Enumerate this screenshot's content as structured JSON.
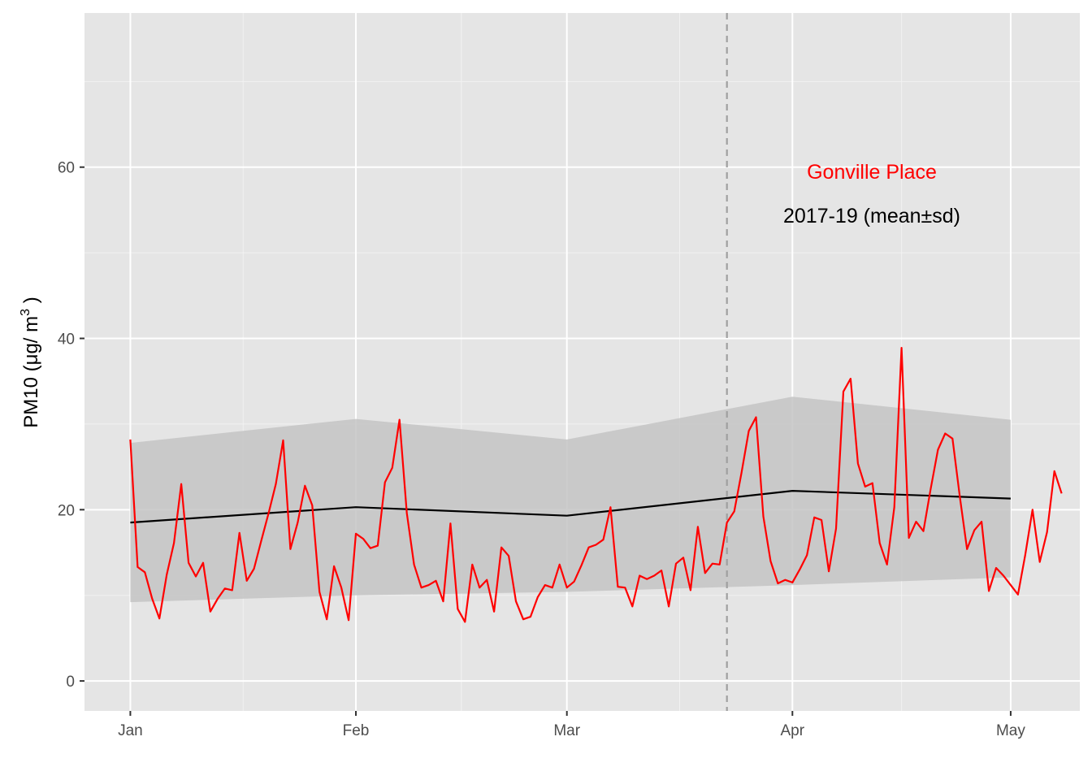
{
  "chart_data": {
    "type": "line",
    "ylabel_parts": [
      "PM10 (",
      "μ",
      "g/",
      "m",
      "3",
      ")"
    ],
    "yticks": [
      0,
      20,
      40,
      60
    ],
    "ylim": [
      -3.5,
      78
    ],
    "xticks": [
      {
        "label": "Jan",
        "day": 0
      },
      {
        "label": "Feb",
        "day": 31
      },
      {
        "label": "Mar",
        "day": 60
      },
      {
        "label": "Apr",
        "day": 91
      },
      {
        "label": "May",
        "day": 121
      }
    ],
    "x_range_days": [
      -6.3,
      130.5
    ],
    "annotations": {
      "site": "Gonville Place",
      "baseline": "2017-19 (mean±sd)"
    },
    "colors": {
      "site": "#ff0000",
      "baseline": "#000000",
      "band": "#c4c4c4",
      "panel": "#e5e5e5",
      "vline": "#a0a0a0"
    },
    "vline_day": 82,
    "baseline_monthly": {
      "days": [
        0,
        31,
        60,
        91,
        121
      ],
      "mean": [
        18.5,
        20.3,
        19.3,
        22.2,
        21.3
      ],
      "upper": [
        27.8,
        30.6,
        28.2,
        33.2,
        30.5
      ],
      "lower": [
        9.2,
        10.0,
        10.4,
        11.2,
        12.1
      ]
    },
    "series": [
      {
        "name": "Gonville Place",
        "x": [
          0,
          1,
          2,
          3,
          4,
          5,
          6,
          7,
          8,
          9,
          10,
          11,
          12,
          13,
          14,
          15,
          16,
          17,
          18,
          19,
          20,
          21,
          22,
          23,
          24,
          25,
          26,
          27,
          28,
          29,
          30,
          31,
          32,
          33,
          34,
          35,
          36,
          37,
          38,
          39,
          40,
          41,
          42,
          43,
          44,
          45,
          46,
          47,
          48,
          49,
          50,
          51,
          52,
          53,
          54,
          55,
          56,
          57,
          58,
          59,
          60,
          61,
          62,
          63,
          64,
          65,
          66,
          67,
          68,
          69,
          70,
          71,
          72,
          73,
          74,
          75,
          76,
          77,
          78,
          79,
          80,
          81,
          82,
          83,
          84,
          85,
          86,
          87,
          88,
          89,
          90,
          91,
          92,
          93,
          94,
          95,
          96,
          97,
          98,
          99,
          100,
          101,
          102,
          103,
          104,
          105,
          106,
          107,
          108,
          109,
          110,
          111,
          112,
          113,
          114,
          115,
          116,
          117,
          118,
          119,
          120,
          121,
          122,
          123,
          124,
          125,
          126,
          127,
          128
        ],
        "y": [
          28.2,
          13.3,
          12.7,
          9.6,
          7.3,
          12.4,
          16.1,
          23.0,
          13.8,
          12.2,
          13.8,
          8.1,
          9.6,
          10.8,
          10.6,
          17.3,
          11.7,
          13.1,
          16.4,
          19.6,
          23.0,
          28.1,
          15.4,
          18.5,
          22.8,
          20.5,
          10.4,
          7.2,
          13.4,
          10.9,
          7.1,
          17.2,
          16.6,
          15.5,
          15.8,
          23.2,
          24.9,
          30.5,
          19.6,
          13.6,
          10.9,
          11.2,
          11.7,
          9.3,
          18.4,
          8.4,
          6.9,
          13.6,
          10.9,
          11.8,
          8.1,
          15.6,
          14.6,
          9.3,
          7.2,
          7.5,
          9.8,
          11.2,
          10.9,
          13.6,
          10.9,
          11.6,
          13.5,
          15.6,
          15.9,
          16.5,
          20.3,
          11.0,
          10.9,
          8.7,
          12.3,
          11.9,
          12.3,
          12.9,
          8.7,
          13.7,
          14.4,
          10.6,
          18.0,
          12.6,
          13.7,
          13.6,
          18.5,
          19.8,
          24.3,
          29.2,
          30.8,
          19.2,
          14.0,
          11.4,
          11.8,
          11.5,
          13.0,
          14.7,
          19.1,
          18.8,
          12.8,
          17.8,
          33.8,
          35.3,
          25.4,
          22.7,
          23.1,
          16.1,
          13.6,
          20.3,
          38.9,
          16.7,
          18.6,
          17.5,
          22.4,
          27.0,
          28.9,
          28.3,
          21.6,
          15.4,
          17.6,
          18.6,
          10.5,
          13.2,
          12.3,
          11.2,
          10.1,
          14.7,
          20.0,
          13.9,
          17.4,
          24.5,
          21.9
        ]
      }
    ]
  }
}
